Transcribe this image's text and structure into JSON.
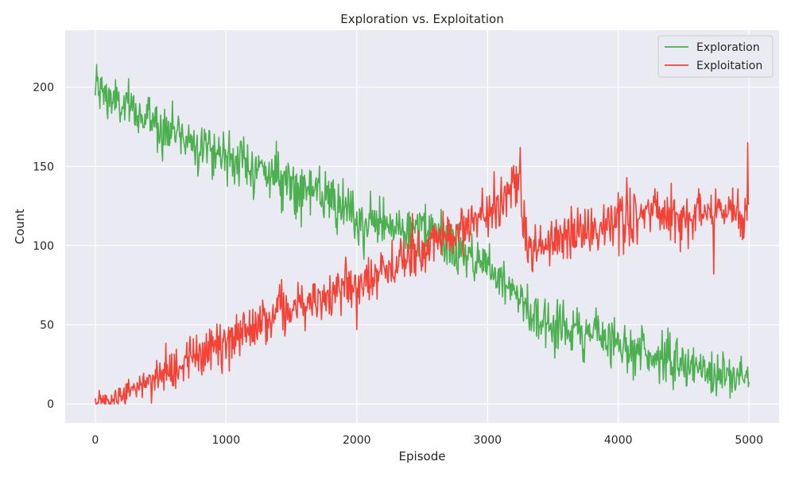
{
  "chart_data": {
    "type": "line",
    "title": "Exploration vs. Exploitation",
    "xlabel": "Episode",
    "ylabel": "Count",
    "xlim": [
      -230,
      5230
    ],
    "ylim": [
      -12,
      236
    ],
    "xticks": [
      0,
      1000,
      2000,
      3000,
      4000,
      5000
    ],
    "yticks": [
      0,
      50,
      100,
      150,
      200
    ],
    "grid": true,
    "legend_position": "top-right",
    "background": "#eaeaf2",
    "x_step": 5,
    "series": [
      {
        "name": "Exploration",
        "color": "#4caf50",
        "trend_points": [
          [
            0,
            200
          ],
          [
            200,
            188
          ],
          [
            500,
            176
          ],
          [
            1000,
            157
          ],
          [
            1500,
            140
          ],
          [
            1800,
            128
          ],
          [
            2000,
            115
          ],
          [
            2300,
            112
          ],
          [
            2600,
            108
          ],
          [
            2800,
            95
          ],
          [
            3000,
            88
          ],
          [
            3200,
            75
          ],
          [
            3300,
            60
          ],
          [
            3400,
            52
          ],
          [
            4000,
            40
          ],
          [
            4200,
            33
          ],
          [
            4500,
            24
          ],
          [
            5000,
            15
          ]
        ],
        "noise_sd": 8
      },
      {
        "name": "Exploitation",
        "color": "#f44336",
        "trend_points": [
          [
            0,
            0
          ],
          [
            200,
            6
          ],
          [
            500,
            18
          ],
          [
            1000,
            40
          ],
          [
            1500,
            62
          ],
          [
            2000,
            75
          ],
          [
            2400,
            92
          ],
          [
            2800,
            112
          ],
          [
            3000,
            120
          ],
          [
            3200,
            138
          ],
          [
            3250,
            142
          ],
          [
            3270,
            110
          ],
          [
            3300,
            100
          ],
          [
            3400,
            98
          ],
          [
            3600,
            105
          ],
          [
            4000,
            116
          ],
          [
            4200,
            121
          ],
          [
            4500,
            119
          ],
          [
            5000,
            120
          ]
        ],
        "noise_sd": 8,
        "outliers": [
          [
            3250,
            162
          ],
          [
            4990,
            165
          ],
          [
            4730,
            82
          ],
          [
            2000,
            47
          ]
        ]
      }
    ]
  }
}
